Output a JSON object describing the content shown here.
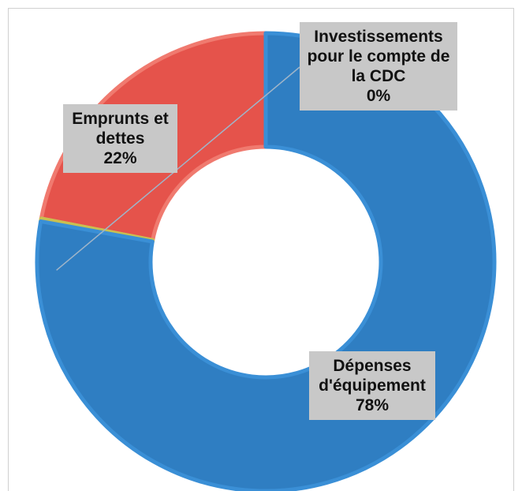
{
  "chart_data": {
    "type": "pie",
    "variant": "donut",
    "slices": [
      {
        "label": "Dépenses d'équipement",
        "value": 78,
        "pct_label": "78%",
        "color": "#2f7ec2",
        "edge": "#3a8fd6",
        "label_lines": [
          "Dépenses",
          "d'équipement"
        ]
      },
      {
        "label": "Investissements pour le compte de la CDC",
        "value": 0.2,
        "pct_label": "0%",
        "color": "#a7a34a",
        "edge": "#c9c050",
        "label_lines": [
          "Investissements",
          "pour le compte de",
          "la CDC"
        ]
      },
      {
        "label": "Emprunts et dettes",
        "value": 22,
        "pct_label": "22%",
        "color": "#e5534b",
        "edge": "#f07a6f",
        "label_lines": [
          "Emprunts et",
          "dettes"
        ]
      }
    ],
    "legend": "none"
  }
}
